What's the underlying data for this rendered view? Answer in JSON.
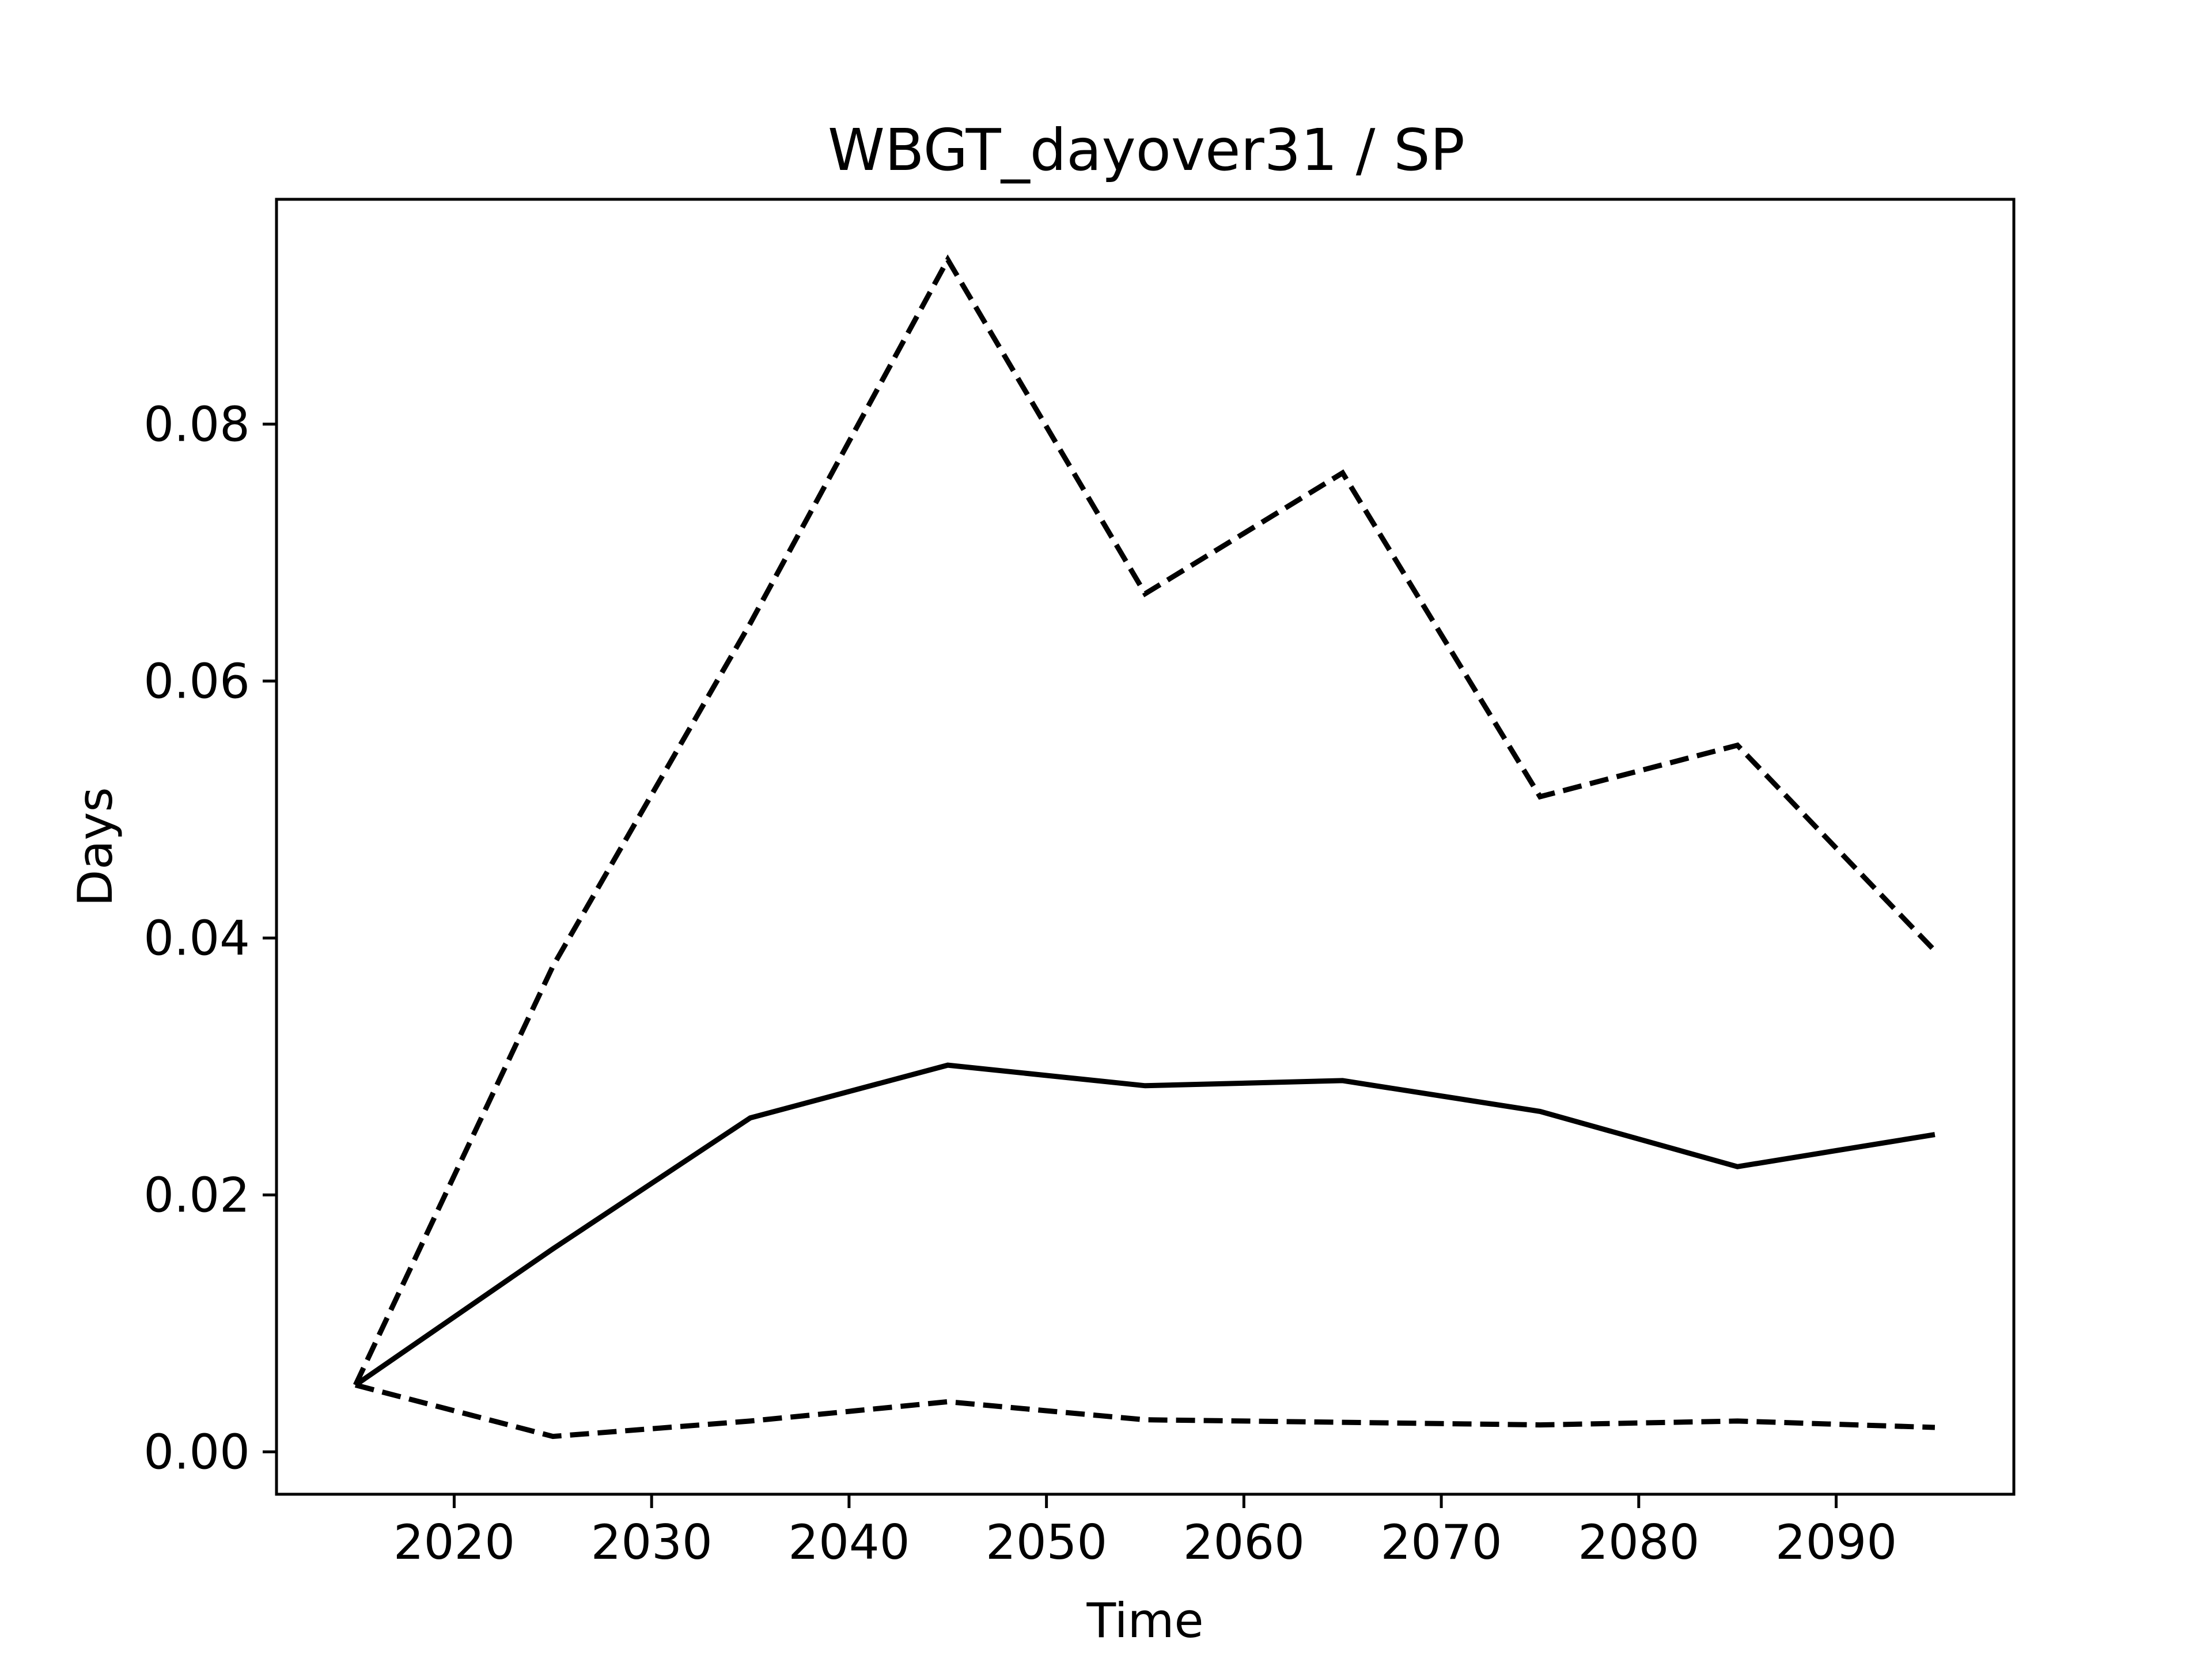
{
  "chart_data": {
    "type": "line",
    "title": "WBGT_dayover31 / SP",
    "xlabel": "Time",
    "ylabel": "Days",
    "xlim": [
      2011,
      2099
    ],
    "ylim": [
      -0.0033,
      0.0975
    ],
    "xticks": [
      2020,
      2030,
      2040,
      2050,
      2060,
      2070,
      2080,
      2090
    ],
    "yticks": [
      0.0,
      0.02,
      0.04,
      0.06,
      0.08
    ],
    "ytick_labels": [
      "0.00",
      "0.02",
      "0.04",
      "0.06",
      "0.08"
    ],
    "grid": false,
    "legend": "none",
    "x": [
      2015,
      2025,
      2035,
      2045,
      2055,
      2065,
      2075,
      2085,
      2095
    ],
    "series": [
      {
        "style": "dashed",
        "color": "#000000",
        "values": [
          0.0052,
          0.0378,
          0.0645,
          0.0928,
          0.0668,
          0.0762,
          0.051,
          0.055,
          0.039
        ]
      },
      {
        "style": "solid",
        "color": "#000000",
        "values": [
          0.0052,
          0.0158,
          0.026,
          0.0301,
          0.0285,
          0.0289,
          0.0265,
          0.0222,
          0.0247
        ]
      },
      {
        "style": "dashed",
        "color": "#000000",
        "values": [
          0.0052,
          0.0012,
          0.0024,
          0.0039,
          0.0025,
          0.0023,
          0.0021,
          0.0024,
          0.0019
        ]
      }
    ]
  }
}
